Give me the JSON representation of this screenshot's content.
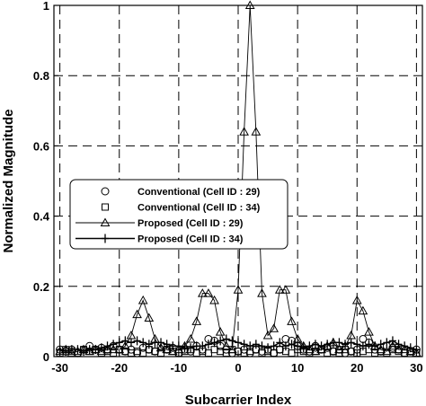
{
  "chart_data": {
    "type": "line",
    "xlabel": "Subcarrier Index",
    "ylabel": "Normalized Magnitude",
    "xlim": [
      -31,
      31
    ],
    "ylim": [
      0,
      1
    ],
    "xticks": [
      -30,
      -20,
      -10,
      0,
      10,
      20,
      30
    ],
    "xtick_labels": [
      "-30",
      "-20",
      "-10",
      "0",
      "10",
      "20",
      "30"
    ],
    "yticks": [
      0,
      0.2,
      0.4,
      0.6,
      0.8,
      1
    ],
    "ytick_labels": [
      "0",
      "0.2",
      "0.4",
      "0.6",
      "0.8",
      "1"
    ],
    "grid": "dashed",
    "legend_position": "center-left",
    "x": [
      -30,
      -29,
      -28,
      -27,
      -26,
      -25,
      -24,
      -23,
      -22,
      -21,
      -20,
      -19,
      -18,
      -17,
      -16,
      -15,
      -14,
      -13,
      -12,
      -11,
      -10,
      -9,
      -8,
      -7,
      -6,
      -5,
      -4,
      -3,
      -2,
      -1,
      0,
      1,
      2,
      3,
      4,
      5,
      6,
      7,
      8,
      9,
      10,
      11,
      12,
      13,
      14,
      15,
      16,
      17,
      18,
      19,
      20,
      21,
      22,
      23,
      24,
      25,
      26,
      27,
      28,
      29,
      30
    ],
    "series": [
      {
        "name": "Conventional (Cell ID : 29)",
        "marker": "circle",
        "line": false,
        "values": [
          0.02,
          0.015,
          0.02,
          0.01,
          0.02,
          0.03,
          0.02,
          0.025,
          0.02,
          0.03,
          0.02,
          0.015,
          0.02,
          0.01,
          0.025,
          0.02,
          0.015,
          0.03,
          0.02,
          0.025,
          0.01,
          0.02,
          0.015,
          0.03,
          0.02,
          0.05,
          0.045,
          0.03,
          0.02,
          0.01,
          0.015,
          0.02,
          0.01,
          0.02,
          0.015,
          0.02,
          0.01,
          0.02,
          0.05,
          0.045,
          0.03,
          0.02,
          0.015,
          0.03,
          0.02,
          0.025,
          0.015,
          0.02,
          0.01,
          0.015,
          0.02,
          0.05,
          0.04,
          0.02,
          0.015,
          0.03,
          0.025,
          0.02,
          0.01,
          0.015,
          0.02
        ]
      },
      {
        "name": "Conventional (Cell ID : 34)",
        "marker": "square",
        "line": false,
        "values": [
          0.01,
          0.02,
          0.015,
          0.01,
          0.02,
          0.015,
          0.02,
          0.01,
          0.015,
          0.01,
          0.02,
          0.015,
          0.01,
          0.015,
          0.01,
          0.02,
          0.015,
          0.01,
          0.02,
          0.015,
          0.01,
          0.015,
          0.02,
          0.01,
          0.015,
          0.01,
          0.02,
          0.015,
          0.01,
          0.02,
          0.015,
          0.01,
          0.015,
          0.02,
          0.01,
          0.015,
          0.01,
          0.02,
          0.015,
          0.01,
          0.02,
          0.015,
          0.01,
          0.015,
          0.02,
          0.01,
          0.015,
          0.01,
          0.02,
          0.015,
          0.01,
          0.015,
          0.02,
          0.01,
          0.015,
          0.01,
          0.02,
          0.015,
          0.01,
          0.015,
          0.01
        ]
      },
      {
        "name": "Proposed (Cell ID : 29)",
        "marker": "triangle",
        "line": true,
        "values": [
          0.015,
          0.02,
          0.01,
          0.015,
          0.02,
          0.015,
          0.02,
          0.015,
          0.02,
          0.02,
          0.02,
          0.03,
          0.06,
          0.12,
          0.16,
          0.11,
          0.05,
          0.025,
          0.02,
          0.015,
          0.02,
          0.03,
          0.05,
          0.1,
          0.18,
          0.18,
          0.16,
          0.07,
          0.03,
          0.02,
          0.19,
          0.64,
          1.0,
          0.64,
          0.18,
          0.06,
          0.08,
          0.19,
          0.19,
          0.1,
          0.05,
          0.03,
          0.02,
          0.015,
          0.02,
          0.03,
          0.04,
          0.02,
          0.03,
          0.06,
          0.16,
          0.13,
          0.07,
          0.03,
          0.02,
          0.015,
          0.03,
          0.02,
          0.02,
          0.015,
          0.01
        ]
      },
      {
        "name": "Proposed (Cell ID : 34)",
        "marker": "cross",
        "line": true,
        "values": [
          0.02,
          0.015,
          0.02,
          0.02,
          0.015,
          0.02,
          0.02,
          0.025,
          0.03,
          0.035,
          0.04,
          0.045,
          0.04,
          0.045,
          0.04,
          0.035,
          0.04,
          0.04,
          0.035,
          0.03,
          0.03,
          0.025,
          0.025,
          0.03,
          0.03,
          0.035,
          0.04,
          0.045,
          0.05,
          0.045,
          0.04,
          0.035,
          0.03,
          0.035,
          0.03,
          0.025,
          0.03,
          0.04,
          0.03,
          0.035,
          0.03,
          0.025,
          0.03,
          0.035,
          0.03,
          0.035,
          0.04,
          0.04,
          0.035,
          0.04,
          0.035,
          0.03,
          0.035,
          0.03,
          0.035,
          0.04,
          0.045,
          0.035,
          0.03,
          0.025,
          0.02
        ]
      }
    ]
  }
}
